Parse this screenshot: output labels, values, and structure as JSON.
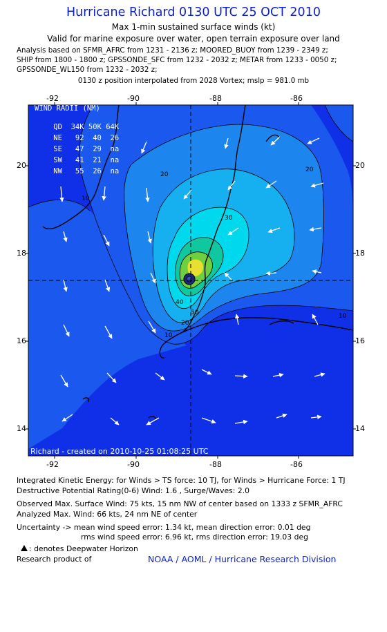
{
  "header": {
    "title": "Hurricane Richard 0130 UTC 25 OCT 2010",
    "subtitle": "Max 1-min sustained surface winds (kt)",
    "validity": "Valid for marine exposure over water, open terrain exposure over land",
    "analysis_lines": [
      "Analysis based on SFMR_AFRC from 1231 - 2136 z; MOORED_BUOY from 1239 - 2349 z;",
      "SHIP from 1800 - 1800 z; GPSSONDE_SFC from 1232 - 2032 z; METAR from 1233 - 0050 z;",
      "GPSSONDE_WL150 from 1232 - 2032 z;"
    ],
    "position_line": "0130 z position interpolated from 2028 Vortex; mslp = 981.0 mb"
  },
  "axes": {
    "top_lon_labels": [
      "-92",
      "-90",
      "-88",
      "-86"
    ],
    "bottom_lon_labels": [
      "-92",
      "-90",
      "-88",
      "-86"
    ],
    "lat_labels": [
      "20",
      "18",
      "16",
      "14"
    ]
  },
  "map": {
    "wind_radii_table": {
      "title": "WIND RADII (NM)",
      "header": [
        "QD",
        "34K",
        "50K",
        "64K"
      ],
      "rows": [
        [
          "NE",
          "92",
          "40",
          "26"
        ],
        [
          "SE",
          "47",
          "29",
          "na"
        ],
        [
          "SW",
          "41",
          "21",
          "na"
        ],
        [
          "NW",
          "55",
          "26",
          "na"
        ]
      ]
    },
    "contour_labels": [
      "10",
      "20",
      "20",
      "30",
      "40",
      "50",
      "10",
      "10",
      "20"
    ],
    "created_label": "Richard - created on 2010-10-25 01:08:25 UTC",
    "colors": {
      "background": "#1030e8",
      "band_10": "#1a58ee",
      "band_20": "#1d86ee",
      "band_30": "#16b0f0",
      "band_40": "#00d8ee",
      "band_50": "#10c8a0",
      "band_60": "#6ed040",
      "band_64": "#e8e030"
    }
  },
  "footer": {
    "ike": "Integrated Kinetic Energy:  for Winds > TS force: 10 TJ,  for Winds > Hurricane Force: 1 TJ",
    "dpr": "Destructive Potential Rating(0-6)   Wind: 1.6 , Surge/Waves: 2.0",
    "observed": "Observed Max. Surface Wind: 75 kts, 15 nm NW of center based on 1333 z SFMR_AFRC",
    "analyzed": "Analyzed Max. Wind: 66 kts, 24 nm NE of center",
    "uncertainty1": "Uncertainty -> mean wind speed error: 1.34 kt,   mean direction error: 0.01 deg",
    "uncertainty2": "rms wind speed error: 6.96 kt,   rms direction error: 19.03 deg",
    "deepwater_note": ": denotes Deepwater Horizon",
    "research_product": "Research product of",
    "credit": "NOAA / AOML / Hurricane Research Division"
  }
}
